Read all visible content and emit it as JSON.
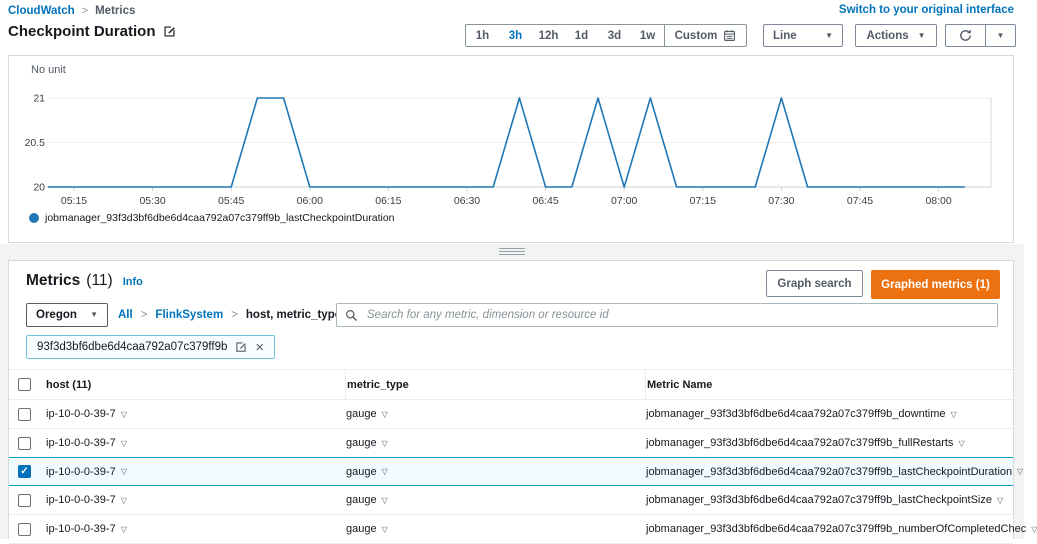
{
  "colors": {
    "accent_blue": "#0073bb",
    "chart_line": "#1f77b4",
    "orange": "#ec7211",
    "selected_row_bg": "#f1faff",
    "selected_row_border": "#00a1c9"
  },
  "top_nav": {
    "breadcrumb": [
      "CloudWatch",
      "Metrics"
    ],
    "switch_link": "Switch to your original interface"
  },
  "toolbar": {
    "title": "Checkpoint Duration",
    "time_ranges": [
      "1h",
      "3h",
      "12h",
      "1d",
      "3d",
      "1w"
    ],
    "selected_range": "3h",
    "custom_label": "Custom",
    "line_select": "Line",
    "actions_label": "Actions"
  },
  "chart_data": {
    "type": "line",
    "unit_label": "No unit",
    "y_ticks": [
      "21",
      "20.5",
      "20"
    ],
    "y_values": [
      21,
      20.5,
      20
    ],
    "ylim": [
      20,
      21
    ],
    "x_ticks": [
      "05:15",
      "05:30",
      "05:45",
      "06:00",
      "06:15",
      "06:30",
      "06:45",
      "07:00",
      "07:15",
      "07:30",
      "07:45",
      "08:00"
    ],
    "grid": true,
    "legend_position": "bottom-left",
    "series": [
      {
        "name": "jobmanager_93f3d3bf6dbe6d4caa792a07c379ff9b_lastCheckpointDuration",
        "color": "#1f77b4",
        "x": [
          "05:10",
          "05:15",
          "05:20",
          "05:25",
          "05:30",
          "05:35",
          "05:40",
          "05:45",
          "05:50",
          "05:55",
          "06:00",
          "06:05",
          "06:10",
          "06:15",
          "06:20",
          "06:25",
          "06:30",
          "06:35",
          "06:40",
          "06:45",
          "06:50",
          "06:55",
          "07:00",
          "07:05",
          "07:10",
          "07:15",
          "07:20",
          "07:25",
          "07:30",
          "07:35",
          "07:40",
          "07:45",
          "07:50",
          "07:55",
          "08:00",
          "08:05"
        ],
        "values": [
          20,
          20,
          20,
          20,
          20,
          20,
          20,
          20,
          21,
          21,
          20,
          20,
          20,
          20,
          20,
          20,
          20,
          20,
          21,
          20,
          20,
          21,
          20,
          21,
          20,
          20,
          20,
          20,
          21,
          20,
          20,
          20,
          20,
          20,
          20,
          20
        ]
      }
    ]
  },
  "metrics_panel": {
    "title": "Metrics",
    "count": "(11)",
    "info_label": "Info",
    "graph_search_label": "Graph search",
    "graphed_metrics_label": "Graphed metrics (1)",
    "region_label": "Oregon",
    "namespace_breadcrumb": [
      "All",
      "FlinkSystem",
      "host, metric_type"
    ],
    "search_placeholder": "Search for any metric, dimension or resource id",
    "filter_tag": "93f3d3bf6dbe6d4caa792a07c379ff9b",
    "table": {
      "columns": [
        "host (11)",
        "metric_type",
        "Metric Name"
      ],
      "rows": [
        {
          "host": "ip-10-0-0-39-7",
          "metric_type": "gauge",
          "metric_name": "jobmanager_93f3d3bf6dbe6d4caa792a07c379ff9b_downtime",
          "checked": false
        },
        {
          "host": "ip-10-0-0-39-7",
          "metric_type": "gauge",
          "metric_name": "jobmanager_93f3d3bf6dbe6d4caa792a07c379ff9b_fullRestarts",
          "checked": false
        },
        {
          "host": "ip-10-0-0-39-7",
          "metric_type": "gauge",
          "metric_name": "jobmanager_93f3d3bf6dbe6d4caa792a07c379ff9b_lastCheckpointDuration",
          "checked": true
        },
        {
          "host": "ip-10-0-0-39-7",
          "metric_type": "gauge",
          "metric_name": "jobmanager_93f3d3bf6dbe6d4caa792a07c379ff9b_lastCheckpointSize",
          "checked": false
        },
        {
          "host": "ip-10-0-0-39-7",
          "metric_type": "gauge",
          "metric_name": "jobmanager_93f3d3bf6dbe6d4caa792a07c379ff9b_numberOfCompletedChec",
          "checked": false
        }
      ]
    }
  }
}
